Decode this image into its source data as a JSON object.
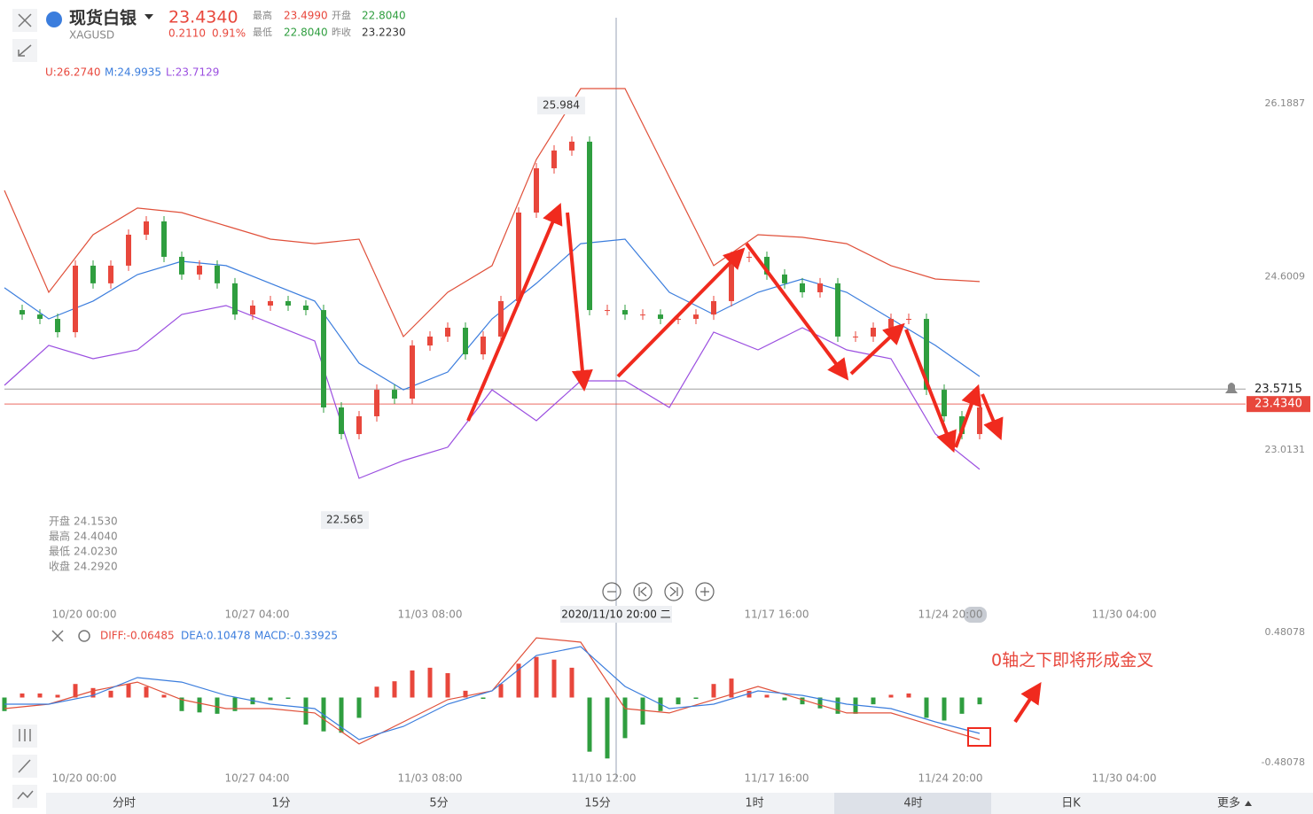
{
  "header": {
    "name": "现货白银",
    "code": "XAGUSD",
    "price": "23.4340",
    "change": "0.2110",
    "change_pct": "0.91%",
    "stats": [
      {
        "label": "最高",
        "value": "23.4990"
      },
      {
        "label": "开盘",
        "value": "22.8040"
      },
      {
        "label": "最低",
        "value": "22.8040"
      },
      {
        "label": "昨收",
        "value": "23.2230"
      }
    ]
  },
  "indicator": [
    "U:26.2740",
    "M:24.9935",
    "L:23.7129"
  ],
  "ohlc_info": [
    {
      "label": "开盘",
      "value": "24.1530"
    },
    {
      "label": "最高",
      "value": "24.4040"
    },
    {
      "label": "最低",
      "value": "24.0230"
    },
    {
      "label": "收盘",
      "value": "24.2920"
    }
  ],
  "chart_data": [
    {
      "type": "candlestick",
      "ylim": [
        21.6163,
        26.6516
      ],
      "yticks": [
        26.1887,
        24.6009,
        23.0131
      ],
      "up_color": "#e8473c",
      "down_color": "#2f9e3f",
      "close": [
        24.296,
        24.255,
        24.215,
        24.093,
        24.703,
        24.541,
        24.703,
        24.987,
        25.109,
        24.784,
        24.622,
        24.703,
        24.541,
        24.255,
        24.337,
        24.378,
        24.337,
        24.296,
        23.403,
        23.159,
        23.322,
        23.565,
        23.484,
        23.971,
        24.053,
        24.134,
        23.89,
        24.053,
        24.378,
        25.19,
        25.596,
        25.759,
        25.84,
        24.296,
        24.296,
        24.255,
        24.255,
        24.215,
        24.215,
        24.255,
        24.378,
        24.784,
        24.784,
        24.622,
        24.541,
        24.459,
        24.541,
        24.053,
        24.053,
        24.134,
        24.215,
        24.215,
        23.565,
        23.322,
        23.159,
        23.403
      ],
      "upper": {
        "color": "#e0503a",
        "values": [
          25.393,
          24.459,
          24.987,
          25.231,
          25.19,
          25.068,
          24.946,
          24.905,
          24.946,
          24.053,
          24.459,
          24.703,
          25.677,
          26.327,
          26.327,
          25.515,
          24.703,
          24.987,
          24.963,
          24.905,
          24.703,
          24.581,
          24.557
        ]
      },
      "middle": {
        "color": "#3b7ddd",
        "values": [
          24.5,
          24.215,
          24.378,
          24.621,
          24.743,
          24.703,
          24.541,
          24.378,
          23.809,
          23.565,
          23.728,
          24.215,
          24.541,
          24.905,
          24.946,
          24.459,
          24.256,
          24.459,
          24.581,
          24.459,
          24.215,
          23.972,
          23.687
        ]
      },
      "lower": {
        "color": "#9b4fe0",
        "values": [
          23.606,
          23.972,
          23.85,
          23.931,
          24.256,
          24.337,
          24.175,
          24.012,
          22.753,
          22.916,
          23.038,
          23.565,
          23.281,
          23.647,
          23.647,
          23.403,
          24.093,
          23.931,
          24.134,
          23.931,
          23.85,
          23.16,
          22.835
        ]
      },
      "reference_lines": [
        {
          "value": 23.5715,
          "color": "#888888"
        },
        {
          "value": 23.434,
          "label": "23.4340",
          "color": "#e8473c"
        }
      ],
      "annotations": [
        25.984,
        22.565
      ],
      "xlabels": [
        "10/20 00:00",
        "10/27 04:00",
        "11/03 08:00",
        "11/17 16:00",
        "11/24 20:00",
        "11/30 04:00"
      ],
      "crosshair_label": "2020/11/10 20:00 二"
    },
    {
      "type": "macd",
      "ylim": [
        -0.5396,
        0.5396
      ],
      "yticks": [
        0.48078,
        -0.48078
      ],
      "legend": [
        "DIFF:-0.06485",
        "DEA:0.10478",
        "MACD:-0.33925"
      ],
      "histogram": {
        "up_color": "#e8473c",
        "down_color": "#2f9e3f",
        "values": [
          -0.1,
          0.03,
          0.03,
          0.02,
          0.1,
          0.07,
          0.05,
          0.1,
          0.08,
          0.02,
          -0.1,
          -0.11,
          -0.12,
          -0.1,
          -0.05,
          -0.02,
          -0.01,
          -0.2,
          -0.25,
          -0.26,
          -0.15,
          0.08,
          0.12,
          0.2,
          0.22,
          0.18,
          0.05,
          -0.01,
          0.1,
          0.25,
          0.3,
          0.28,
          0.22,
          -0.4,
          -0.45,
          -0.3,
          -0.2,
          -0.1,
          -0.05,
          -0.01,
          0.1,
          0.14,
          0.05,
          0.02,
          -0.02,
          -0.05,
          -0.08,
          -0.12,
          -0.12,
          -0.05,
          0.02,
          0.03,
          -0.15,
          -0.17,
          -0.12,
          -0.05
        ]
      },
      "diff": {
        "color": "#e0503a",
        "values": [
          -0.082,
          -0.049,
          0.049,
          0.114,
          -0.016,
          -0.082,
          -0.082,
          -0.114,
          -0.343,
          -0.18,
          -0.016,
          0.049,
          0.441,
          0.409,
          -0.082,
          -0.114,
          -0.016,
          0.082,
          -0.016,
          -0.114,
          -0.114,
          -0.213,
          -0.311
        ]
      },
      "dea": {
        "color": "#3b7ddd",
        "values": [
          -0.049,
          -0.049,
          0.016,
          0.147,
          0.114,
          0.016,
          -0.049,
          -0.082,
          -0.311,
          -0.213,
          -0.049,
          0.049,
          0.311,
          0.376,
          0.082,
          -0.082,
          -0.049,
          0.049,
          0.016,
          -0.049,
          -0.082,
          -0.18,
          -0.265
        ]
      },
      "xlabels": [
        "10/20 00:00",
        "10/27 04:00",
        "11/03 08:00",
        "11/10 12:00",
        "11/17 16:00",
        "11/24 20:00",
        "11/30 04:00"
      ],
      "annotation": "0轴之下即将形成金叉"
    }
  ],
  "tabs": [
    "分时",
    "1分",
    "5分",
    "15分",
    "1时",
    "4时",
    "日K",
    "更多"
  ]
}
